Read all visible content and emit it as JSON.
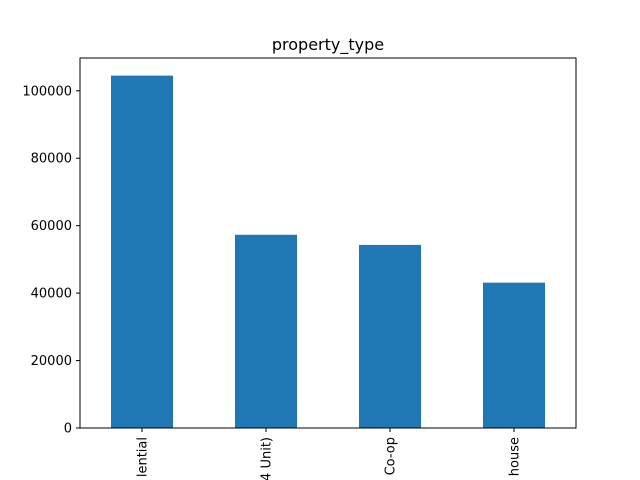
{
  "chart_data": {
    "type": "bar",
    "title": "property_type",
    "xlabel": "",
    "ylabel": "",
    "categories": [
      "lential",
      "4 Unit)",
      "Co-op",
      "house"
    ],
    "values": [
      104500,
      57300,
      54300,
      43100
    ],
    "ylim": [
      0,
      109725
    ],
    "yticks": [
      0,
      20000,
      40000,
      60000,
      80000,
      100000
    ],
    "grid": false,
    "bar_color": "#1f77b4"
  }
}
